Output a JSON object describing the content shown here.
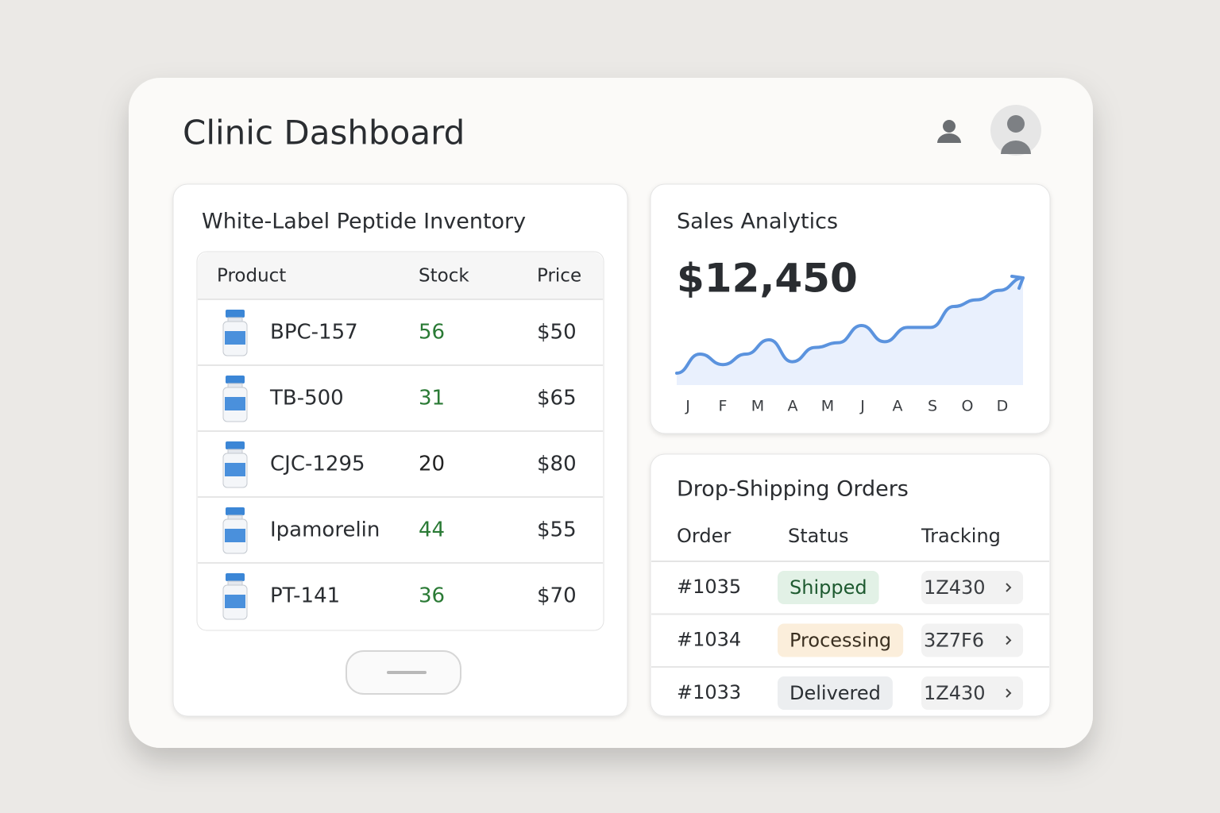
{
  "header": {
    "title": "Clinic Dashboard"
  },
  "inventory": {
    "title": "White-Label Peptide Inventory",
    "columns": [
      "Product",
      "Stock",
      "Price"
    ],
    "rows": [
      {
        "product": "BPC-157",
        "stock": "56",
        "price": "$50",
        "stock_color": "#2a7a35"
      },
      {
        "product": "TB-500",
        "stock": "31",
        "price": "$65",
        "stock_color": "#2a7a35"
      },
      {
        "product": "CJC-1295",
        "stock": "20",
        "price": "$80",
        "stock_color": "#222222"
      },
      {
        "product": "Ipamorelin",
        "stock": "44",
        "price": "$55",
        "stock_color": "#2a7a35"
      },
      {
        "product": "PT-141",
        "stock": "36",
        "price": "$70",
        "stock_color": "#2a7a35"
      }
    ]
  },
  "sales": {
    "title": "Sales Analytics",
    "total": "$12,450",
    "months": [
      "J",
      "F",
      "M",
      "A",
      "M",
      "J",
      "A",
      "S",
      "O",
      "D"
    ],
    "trend": [
      0,
      20,
      9,
      20,
      35,
      12,
      27,
      32,
      50,
      33,
      48,
      48,
      70,
      77,
      87,
      100
    ],
    "color": "#5b93de"
  },
  "orders": {
    "title": "Drop-Shipping Orders",
    "columns": [
      "Order",
      "Status",
      "Tracking"
    ],
    "rows": [
      {
        "order": "#1035",
        "status": "Shipped",
        "tracking": "1Z430",
        "status_bg": "#e2f1e6",
        "status_fg": "#1e5a30"
      },
      {
        "order": "#1034",
        "status": "Processing",
        "tracking": "3Z7F6",
        "status_bg": "#fbeedb",
        "status_fg": "#3a2f20"
      },
      {
        "order": "#1033",
        "status": "Delivered",
        "tracking": "1Z430",
        "status_bg": "#eceef0",
        "status_fg": "#2b2f33"
      }
    ]
  }
}
